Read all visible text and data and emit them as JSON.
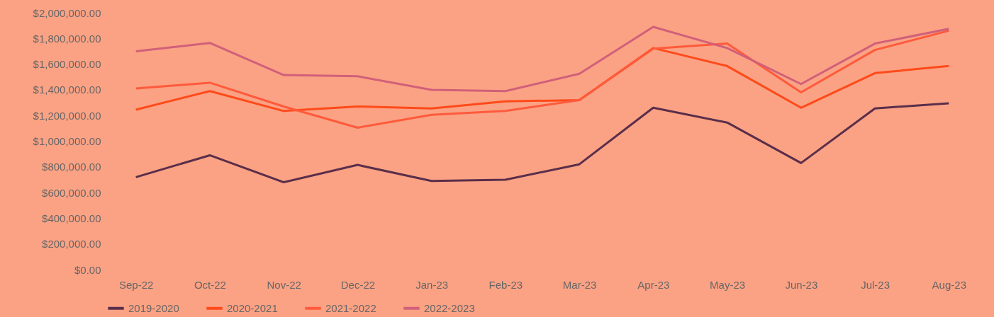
{
  "chart_data": {
    "type": "line",
    "categories": [
      "Sep-22",
      "Oct-22",
      "Nov-22",
      "Dec-22",
      "Jan-23",
      "Feb-23",
      "Mar-23",
      "Apr-23",
      "May-23",
      "Jun-23",
      "Jul-23",
      "Aug-23"
    ],
    "series": [
      {
        "name": "2019-2020",
        "color": "#5a2e4a",
        "values": [
          720000,
          890000,
          680000,
          815000,
          690000,
          700000,
          820000,
          1260000,
          1145000,
          830000,
          1255000,
          1295000
        ]
      },
      {
        "name": "2020-2021",
        "color": "#ff4a1a",
        "values": [
          1245000,
          1390000,
          1235000,
          1270000,
          1255000,
          1310000,
          1320000,
          1725000,
          1585000,
          1260000,
          1530000,
          1585000
        ]
      },
      {
        "name": "2021-2022",
        "color": "#ff5a3c",
        "values": [
          1410000,
          1455000,
          1270000,
          1105000,
          1205000,
          1235000,
          1320000,
          1720000,
          1760000,
          1380000,
          1710000,
          1860000
        ]
      },
      {
        "name": "2022-2023",
        "color": "#d0607a",
        "values": [
          1700000,
          1765000,
          1515000,
          1505000,
          1400000,
          1390000,
          1525000,
          1890000,
          1725000,
          1445000,
          1760000,
          1875000
        ]
      }
    ],
    "ylim": [
      0,
      2000000
    ],
    "yticks": [
      {
        "value": 0,
        "label": "$0.00"
      },
      {
        "value": 200000,
        "label": "$200,000.00"
      },
      {
        "value": 400000,
        "label": "$400,000.00"
      },
      {
        "value": 600000,
        "label": "$600,000.00"
      },
      {
        "value": 800000,
        "label": "$800,000.00"
      },
      {
        "value": 1000000,
        "label": "$1,000,000.00"
      },
      {
        "value": 1200000,
        "label": "$1,200,000.00"
      },
      {
        "value": 1400000,
        "label": "$1,400,000.00"
      },
      {
        "value": 1600000,
        "label": "$1,600,000.00"
      },
      {
        "value": 1800000,
        "label": "$1,800,000.00"
      },
      {
        "value": 2000000,
        "label": "$2,000,000.00"
      }
    ],
    "grid": false,
    "legend": "bottom",
    "marker": "none",
    "line_style": "solid"
  }
}
